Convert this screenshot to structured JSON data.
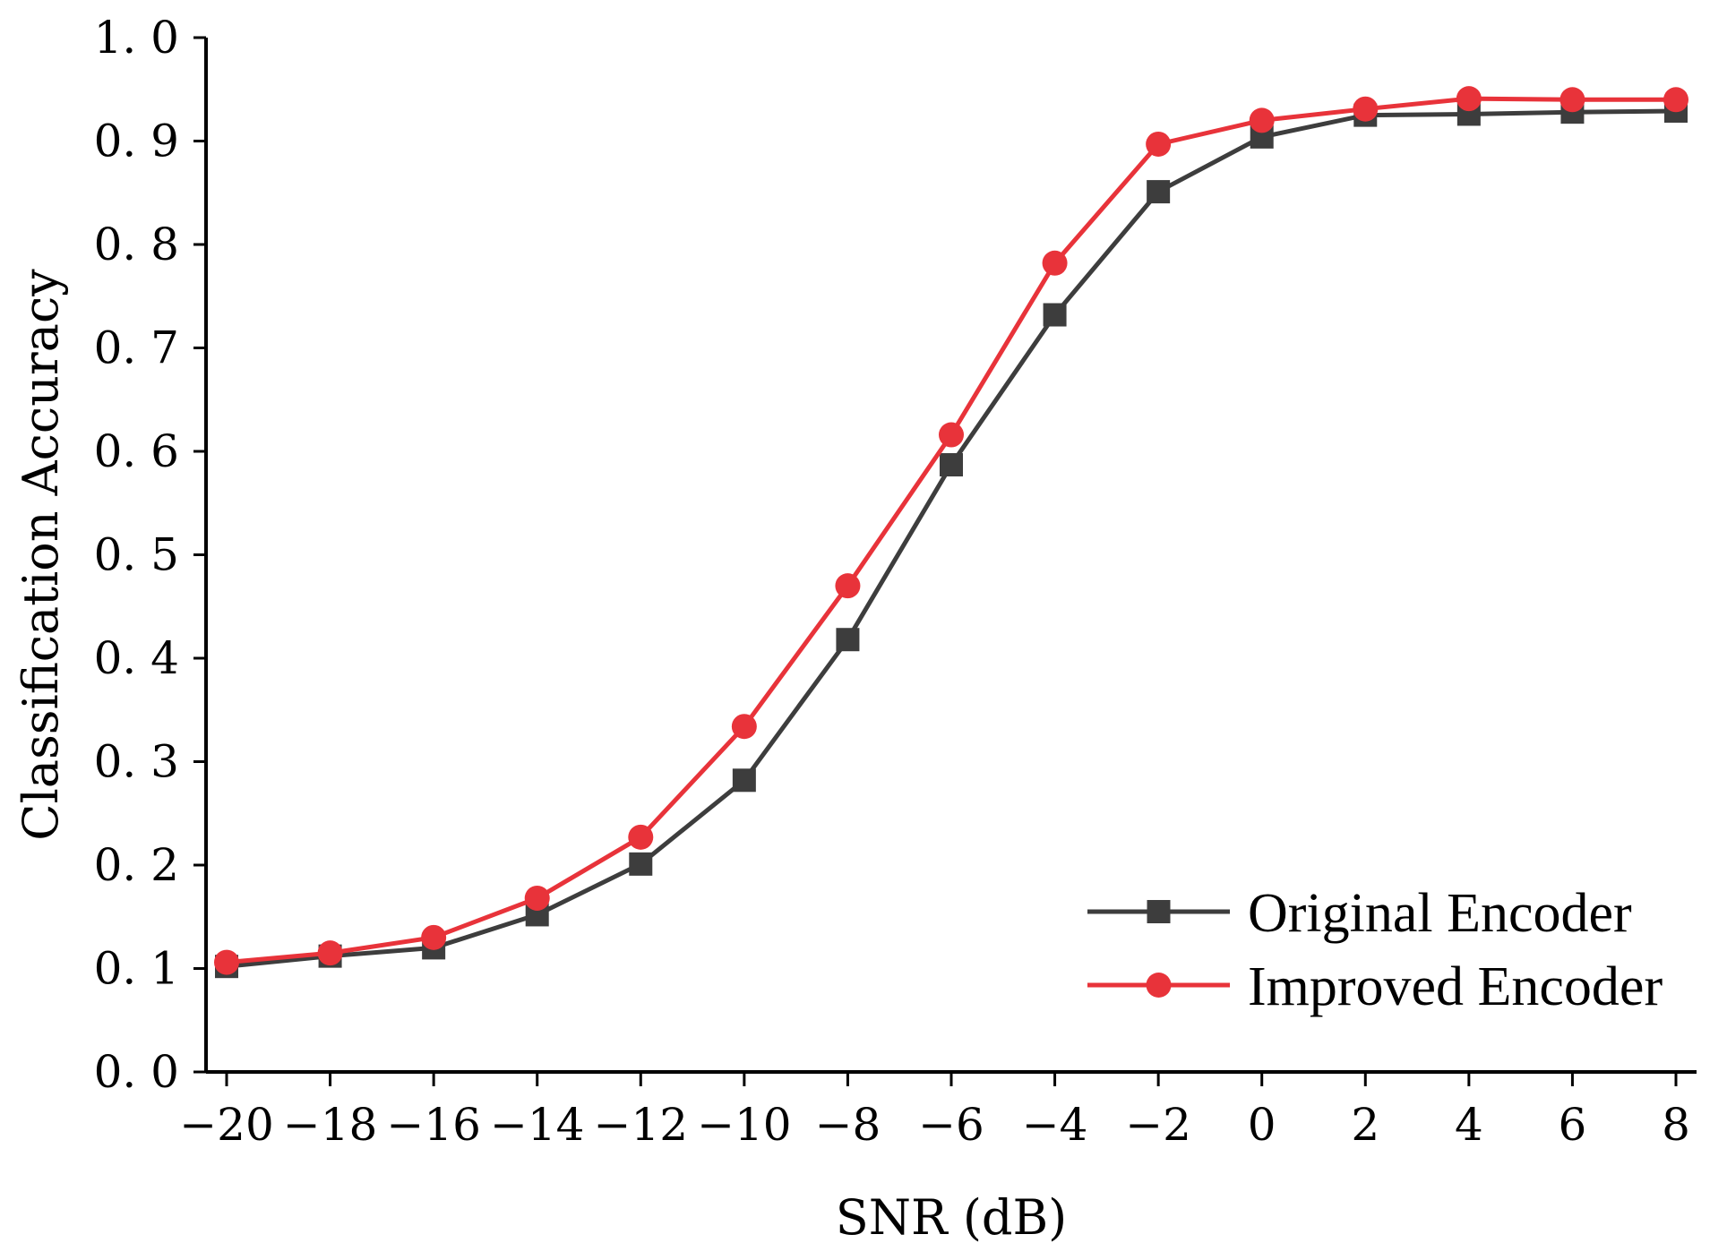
{
  "chart_data": {
    "type": "line",
    "title": "",
    "xlabel": "SNR (dB)",
    "ylabel": "Classification Accuracy",
    "x": [
      -20,
      -18,
      -16,
      -14,
      -12,
      -10,
      -8,
      -6,
      -4,
      -2,
      0,
      2,
      4,
      6,
      8
    ],
    "xlim": [
      -20.5,
      8.5
    ],
    "ylim": [
      0.0,
      1.0
    ],
    "xticks": [
      "−20",
      "−18",
      "−16",
      "−14",
      "−12",
      "−10",
      "−8",
      "−6",
      "−4",
      "−2",
      "0",
      "2",
      "4",
      "6",
      "8"
    ],
    "yticks": [
      "0. 0",
      "0. 1",
      "0. 2",
      "0. 3",
      "0. 4",
      "0. 5",
      "0. 6",
      "0. 7",
      "0. 8",
      "0. 9",
      "1. 0"
    ],
    "ytick_values": [
      0.0,
      0.1,
      0.2,
      0.3,
      0.4,
      0.5,
      0.6,
      0.7,
      0.8,
      0.9,
      1.0
    ],
    "grid": false,
    "legend_position": "bottom-right",
    "series": [
      {
        "name": "Original Encoder",
        "color": "#3d3d3d",
        "marker": "square",
        "values": [
          0.102,
          0.112,
          0.12,
          0.152,
          0.201,
          0.282,
          0.418,
          0.587,
          0.732,
          0.851,
          0.904,
          0.925,
          0.926,
          0.928,
          0.929
        ]
      },
      {
        "name": "Improved Encoder",
        "color": "#e8333a",
        "marker": "circle",
        "values": [
          0.106,
          0.115,
          0.13,
          0.168,
          0.227,
          0.334,
          0.47,
          0.616,
          0.782,
          0.897,
          0.92,
          0.931,
          0.941,
          0.94,
          0.94
        ]
      }
    ]
  }
}
